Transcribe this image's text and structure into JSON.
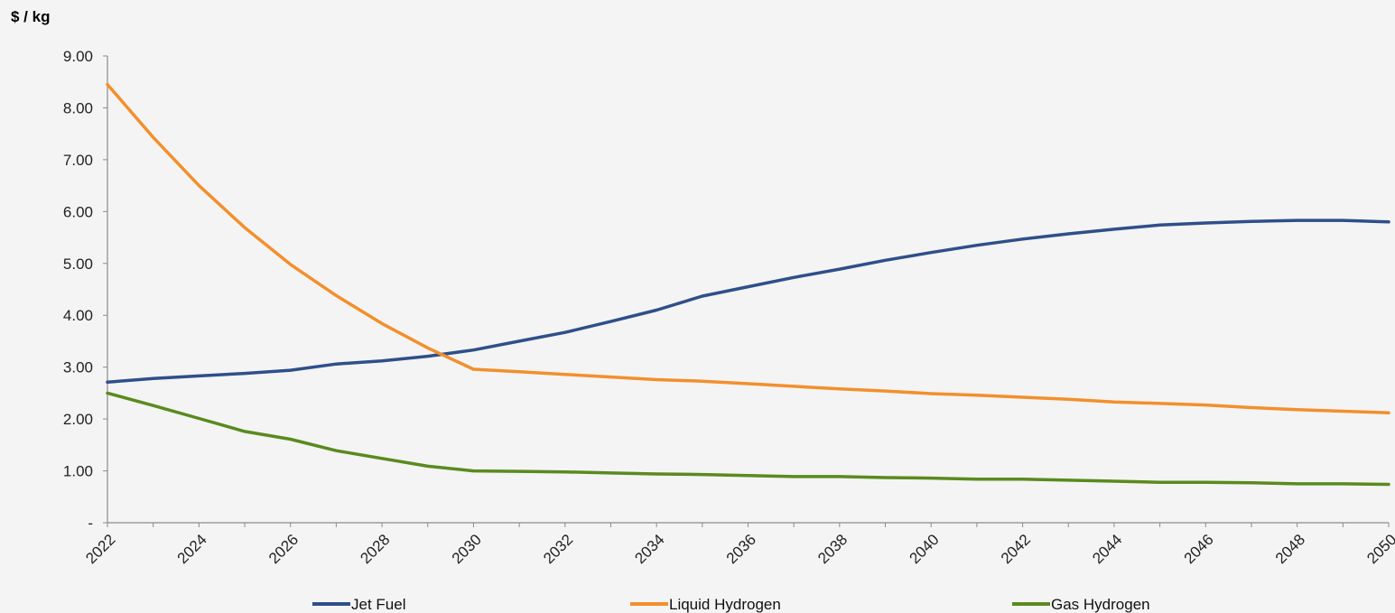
{
  "chart_data": {
    "type": "line",
    "ylabel": "$ / kg",
    "xlabel": "",
    "ylim": [
      0,
      9
    ],
    "yticks": [
      "-",
      "1.00",
      "2.00",
      "3.00",
      "4.00",
      "5.00",
      "6.00",
      "7.00",
      "8.00",
      "9.00"
    ],
    "x": [
      2022,
      2023,
      2024,
      2025,
      2026,
      2027,
      2028,
      2029,
      2030,
      2031,
      2032,
      2033,
      2034,
      2035,
      2036,
      2037,
      2038,
      2039,
      2040,
      2041,
      2042,
      2043,
      2044,
      2045,
      2046,
      2047,
      2048,
      2049,
      2050
    ],
    "xtick_labels": [
      "2022",
      "2024",
      "2026",
      "2028",
      "2030",
      "2032",
      "2034",
      "2036",
      "2038",
      "2040",
      "2042",
      "2044",
      "2046",
      "2048",
      "2050"
    ],
    "grid": false,
    "legend_position": "bottom",
    "series": [
      {
        "name": "Jet Fuel",
        "color": "#2f4f8a",
        "values": [
          2.71,
          2.78,
          2.83,
          2.88,
          2.94,
          3.06,
          3.12,
          3.21,
          3.33,
          3.5,
          3.67,
          3.88,
          4.1,
          4.37,
          4.55,
          4.73,
          4.89,
          5.06,
          5.21,
          5.35,
          5.47,
          5.57,
          5.66,
          5.74,
          5.78,
          5.81,
          5.83,
          5.83,
          5.8
        ]
      },
      {
        "name": "Liquid Hydrogen",
        "color": "#f38f2c",
        "values": [
          8.45,
          7.43,
          6.5,
          5.69,
          4.98,
          4.38,
          3.84,
          3.37,
          2.96,
          2.91,
          2.86,
          2.81,
          2.76,
          2.73,
          2.68,
          2.63,
          2.58,
          2.54,
          2.49,
          2.46,
          2.42,
          2.38,
          2.33,
          2.3,
          2.27,
          2.22,
          2.18,
          2.15,
          2.12
        ]
      },
      {
        "name": "Gas Hydrogen",
        "color": "#5a8a1e",
        "values": [
          2.5,
          2.26,
          2.01,
          1.76,
          1.61,
          1.39,
          1.24,
          1.09,
          1.0,
          0.99,
          0.98,
          0.96,
          0.94,
          0.93,
          0.91,
          0.89,
          0.89,
          0.87,
          0.86,
          0.84,
          0.84,
          0.82,
          0.8,
          0.78,
          0.78,
          0.77,
          0.75,
          0.75,
          0.74
        ]
      }
    ]
  }
}
